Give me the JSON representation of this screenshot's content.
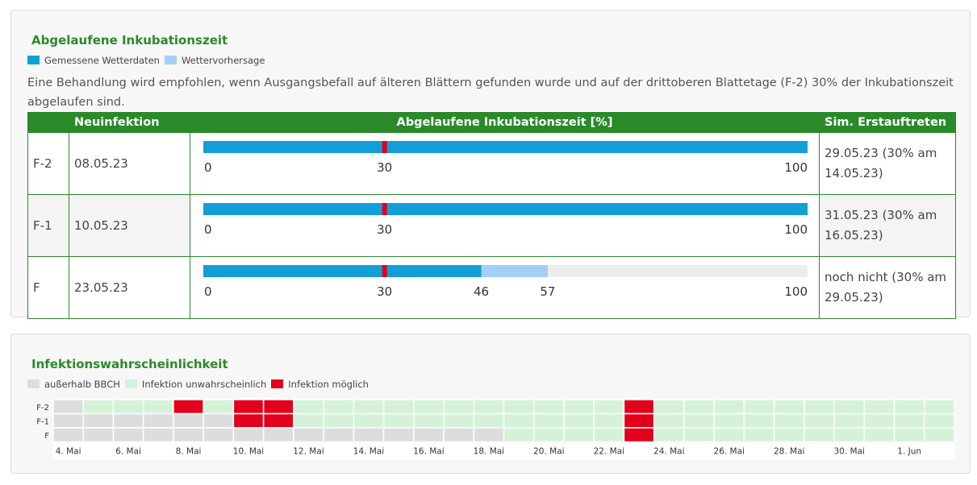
{
  "incubation": {
    "title": "Abgelaufene Inkubationszeit",
    "legend": [
      {
        "label": "Gemessene Wetterdaten",
        "color": "#129fd8"
      },
      {
        "label": "Wettervorhersage",
        "color": "#a3cff7"
      }
    ],
    "note": "Eine Behandlung wird empfohlen, wenn Ausgangsbefall auf älteren Blättern gefunden wurde und auf der drittoberen Blattetage (F-2) 30% der Inkubationszeit abgelaufen sind.",
    "headers": [
      "Neuinfektion",
      "Abgelaufene Inkubationszeit [%]",
      "Sim. Erstauftreten"
    ],
    "scale": [
      0,
      100
    ],
    "threshold": 30,
    "threshold_color": "#e2001a",
    "rows": [
      {
        "label": "F-2",
        "date": "08.05.23",
        "measured": 100,
        "forecast": 100,
        "ticks": [
          0,
          30,
          100
        ],
        "sim": "29.05.23 (30% am 14.05.23)"
      },
      {
        "label": "F-1",
        "date": "10.05.23",
        "measured": 100,
        "forecast": 100,
        "ticks": [
          0,
          30,
          100
        ],
        "sim": "31.05.23 (30% am 16.05.23)"
      },
      {
        "label": "F",
        "date": "23.05.23",
        "measured": 46,
        "forecast": 57,
        "ticks": [
          0,
          30,
          46,
          57,
          100
        ],
        "sim": "noch nicht (30% am 29.05.23)"
      }
    ]
  },
  "probability": {
    "title": "Infektionswahrscheinlichkeit",
    "legend": [
      {
        "label": "außerhalb BBCH",
        "color": "#dddddd"
      },
      {
        "label": "Infektion unwahrscheinlich",
        "color": "#d5f2d8"
      },
      {
        "label": "Infektion möglich",
        "color": "#e2001a"
      }
    ],
    "categories": [
      "4. Mai",
      null,
      "6. Mai",
      null,
      "8. Mai",
      null,
      "10. Mai",
      null,
      "12. Mai",
      null,
      "14. Mai",
      null,
      "16. Mai",
      null,
      "18. Mai",
      null,
      "20. Mai",
      null,
      "22. Mai",
      null,
      "24. Mai",
      null,
      "26. Mai",
      null,
      "28. Mai",
      null,
      "30. Mai",
      null,
      "1. Jun",
      null
    ],
    "rows": [
      {
        "label": "F-2",
        "values": [
          0,
          1,
          1,
          1,
          2,
          1,
          2,
          2,
          1,
          1,
          1,
          1,
          1,
          1,
          1,
          1,
          1,
          1,
          1,
          2,
          1,
          1,
          1,
          1,
          1,
          1,
          1,
          1,
          1,
          1
        ]
      },
      {
        "label": "F-1",
        "values": [
          0,
          0,
          0,
          0,
          0,
          0,
          2,
          2,
          1,
          1,
          1,
          1,
          1,
          1,
          1,
          1,
          1,
          1,
          1,
          2,
          1,
          1,
          1,
          1,
          1,
          1,
          1,
          1,
          1,
          1
        ]
      },
      {
        "label": "F",
        "values": [
          0,
          0,
          0,
          0,
          0,
          0,
          0,
          0,
          0,
          0,
          0,
          0,
          0,
          0,
          0,
          1,
          1,
          1,
          1,
          2,
          1,
          1,
          1,
          1,
          1,
          1,
          1,
          1,
          1,
          1
        ]
      }
    ]
  }
}
